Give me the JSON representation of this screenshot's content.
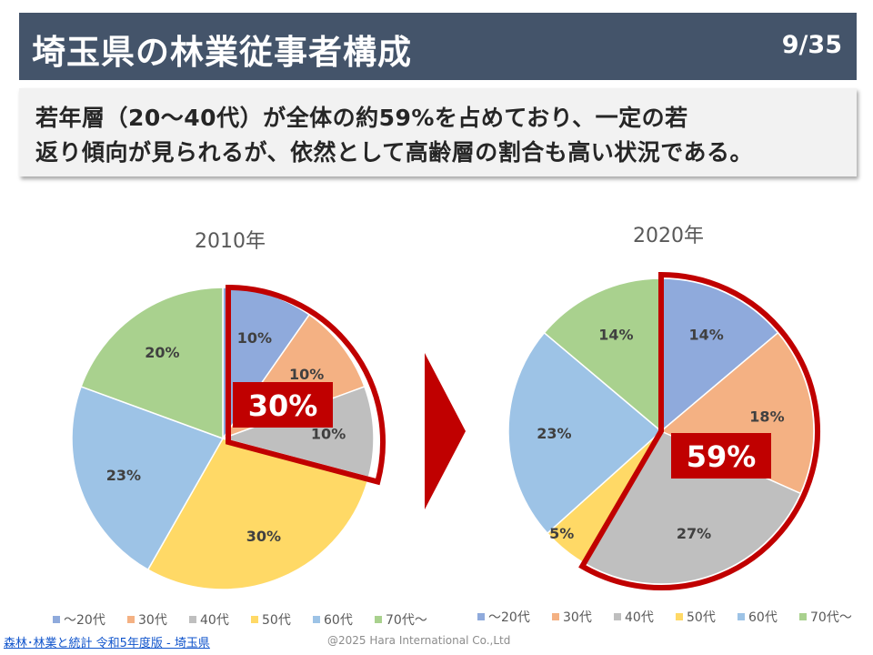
{
  "header": {
    "title": "埼玉県の林業従事者構成",
    "page": "9/35"
  },
  "summary": {
    "line1": "若年層（20～40代）が全体の約59%を占めており、一定の若",
    "line2": "返り傾向が見られるが、依然として高齢層の割合も高い状況である。"
  },
  "chart_data": [
    {
      "type": "pie",
      "title": "2010年",
      "categories": [
        "～20代",
        "30代",
        "40代",
        "50代",
        "60代",
        "70代～"
      ],
      "values": [
        10,
        10,
        10,
        30,
        23,
        20
      ],
      "value_labels": [
        "10%",
        "10%",
        "10%",
        "30%",
        "23%",
        "20%"
      ],
      "colors": [
        "#8faadc",
        "#f4b183",
        "#bfbfbf",
        "#ffd966",
        "#9dc3e6",
        "#a9d18e"
      ],
      "start": "12 o'clock",
      "direction": "clockwise",
      "highlight": {
        "label": "30%",
        "categories": [
          "～20代",
          "30代",
          "40代"
        ],
        "color": "#c00000"
      },
      "legend": "bottom"
    },
    {
      "type": "pie",
      "title": "2020年",
      "categories": [
        "～20代",
        "30代",
        "40代",
        "50代",
        "60代",
        "70代～"
      ],
      "values": [
        14,
        18,
        27,
        5,
        23,
        14
      ],
      "value_labels": [
        "14%",
        "18%",
        "27%",
        "5%",
        "23%",
        "14%"
      ],
      "colors": [
        "#8faadc",
        "#f4b183",
        "#bfbfbf",
        "#ffd966",
        "#9dc3e6",
        "#a9d18e"
      ],
      "start": "12 o'clock",
      "direction": "clockwise",
      "highlight": {
        "label": "59%",
        "categories": [
          "～20代",
          "30代",
          "40代"
        ],
        "color": "#c00000"
      },
      "legend": "bottom"
    }
  ],
  "footer": {
    "source": "森林･林業と統計 令和5年度版 - 埼玉県",
    "copyright": "@2025 Hara International Co.,Ltd"
  }
}
